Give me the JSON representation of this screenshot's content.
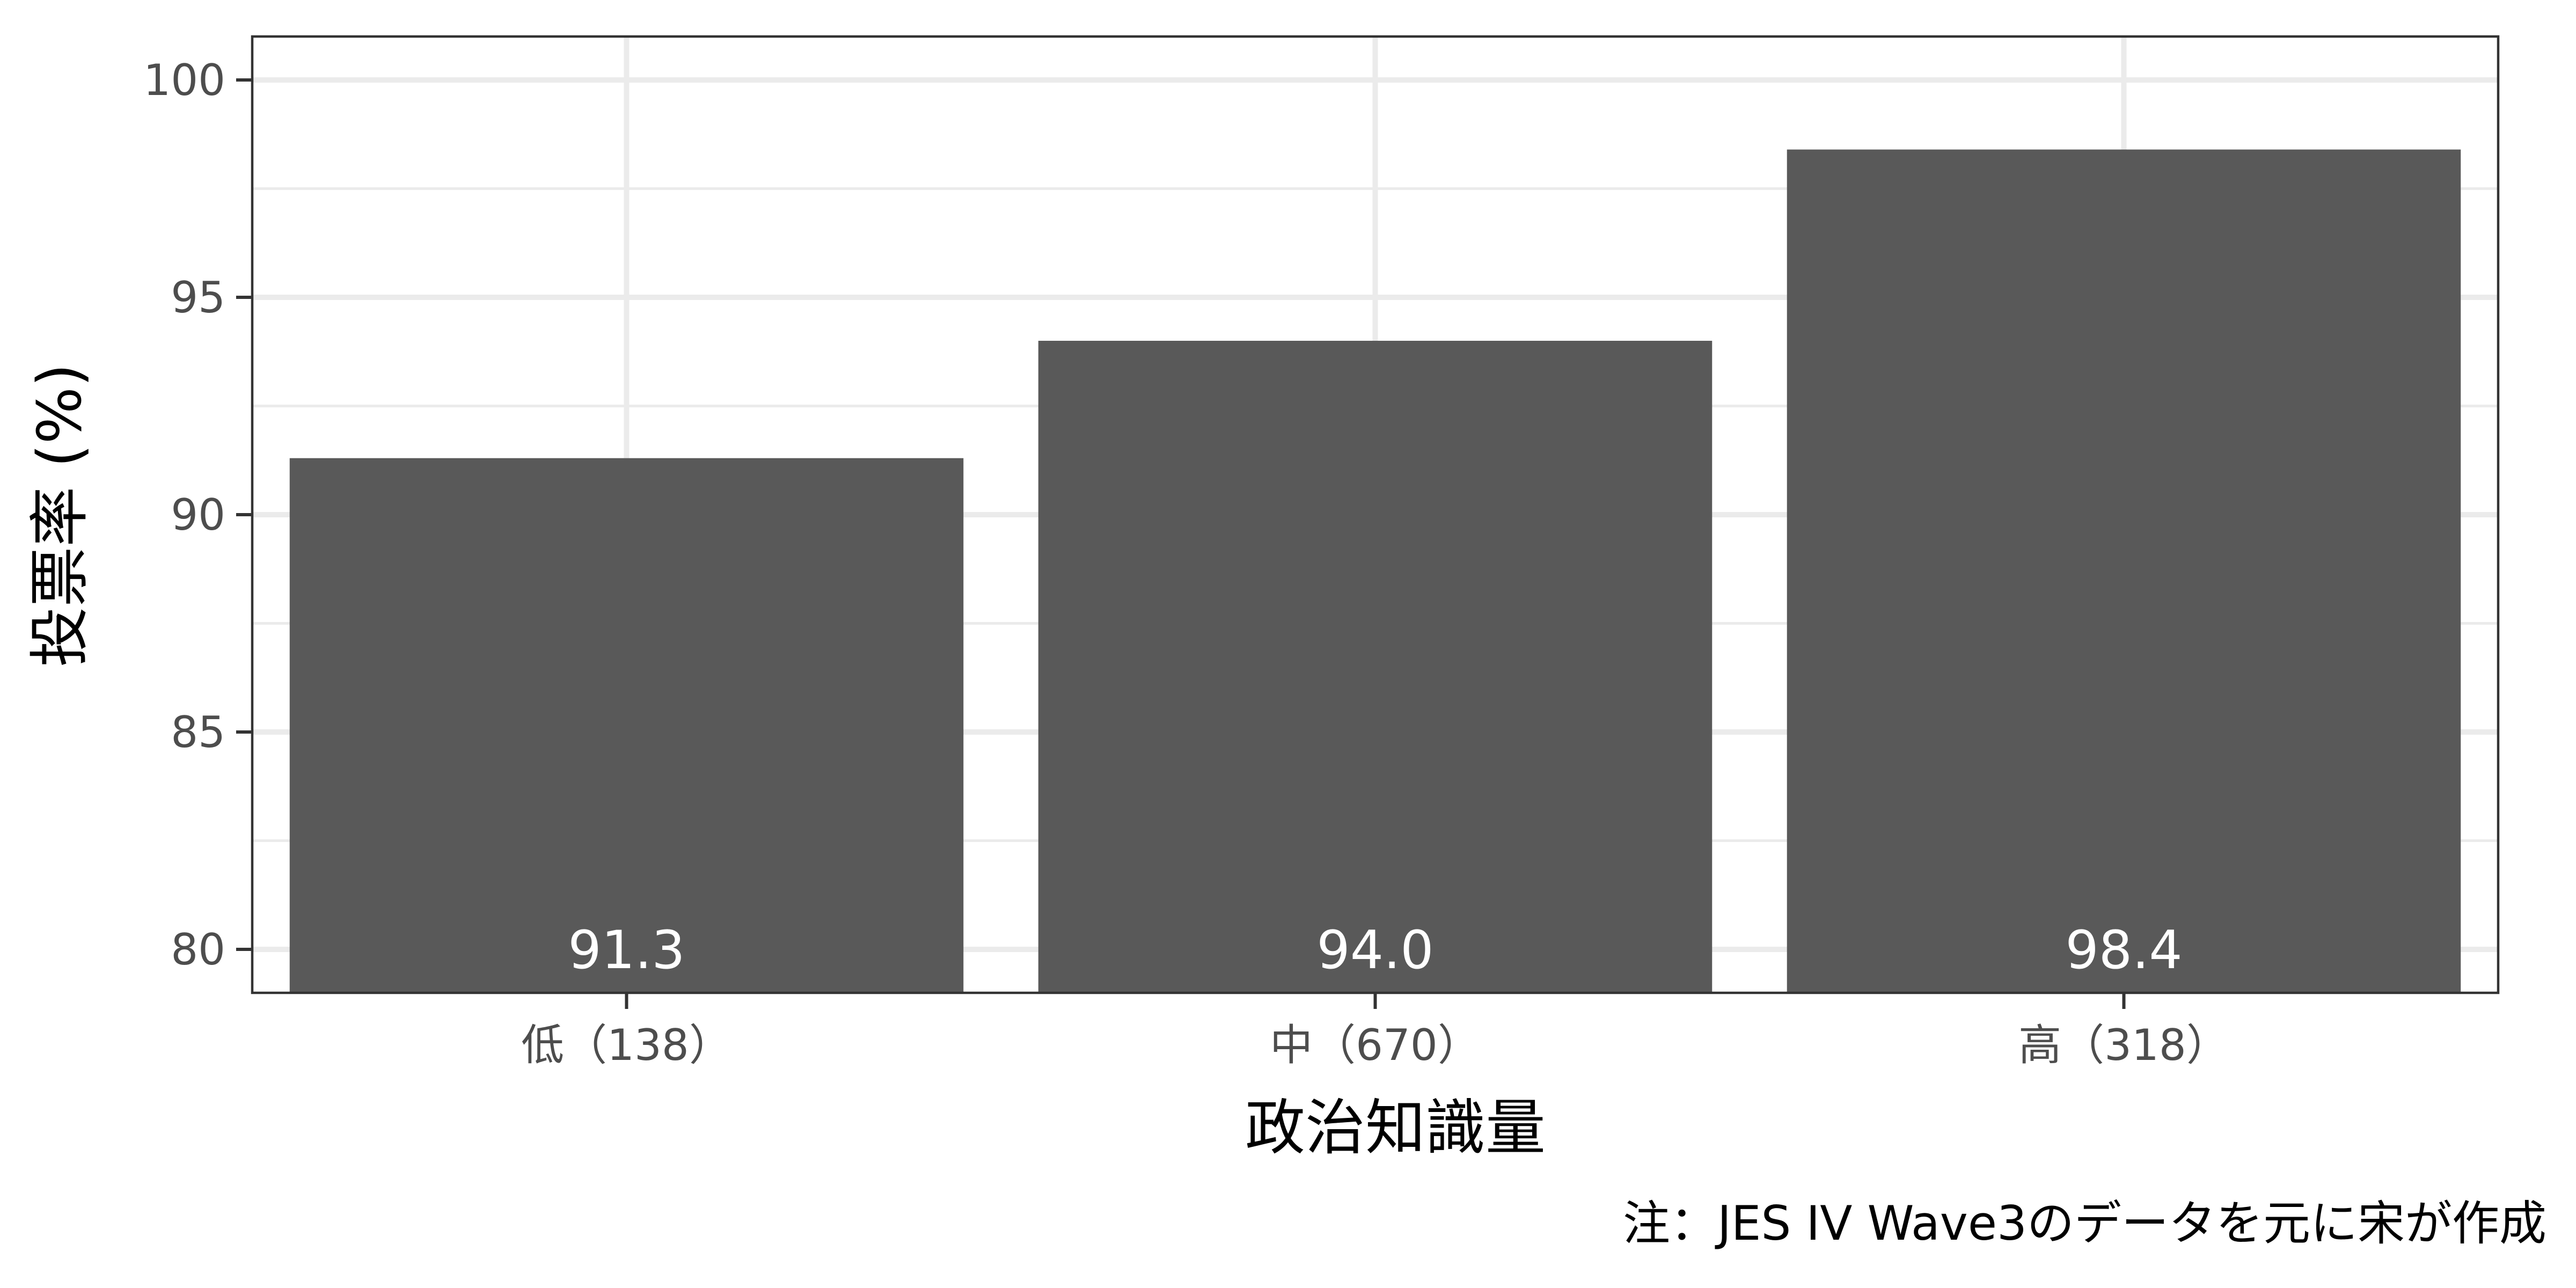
{
  "chart_data": {
    "type": "bar",
    "categories": [
      "低（138）",
      "中（670）",
      "高（318）"
    ],
    "values": [
      91.3,
      94.0,
      98.4
    ],
    "data_labels": [
      "91.3",
      "94.0",
      "98.4"
    ],
    "title": "",
    "xlabel": "政治知識量",
    "ylabel": "投票率 (%)",
    "ylim": [
      79,
      101
    ],
    "yticks": [
      80,
      85,
      90,
      95,
      100
    ],
    "ytick_labels": [
      "80",
      "85",
      "90",
      "95",
      "100"
    ],
    "yminor_ticks": [
      82.5,
      87.5,
      92.5,
      97.5
    ],
    "grid": true,
    "caption": "注：JES IV Wave3のデータを元に宋が作成",
    "colors": {
      "bar": "#595959",
      "grid": "#ebebeb",
      "panel_border": "#333333",
      "data_label": "#ffffff"
    }
  }
}
